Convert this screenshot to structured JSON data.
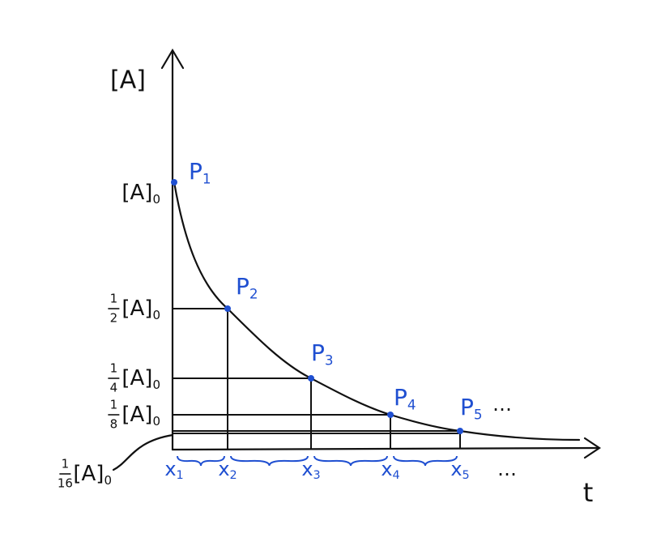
{
  "axes": {
    "y_label": "[A]",
    "x_label": "t"
  },
  "y_labels": [
    {
      "base": "[A]",
      "subscript": "0"
    },
    {
      "numerator": "1",
      "denominator": "2",
      "base": "[A]",
      "subscript": "0"
    },
    {
      "numerator": "1",
      "denominator": "4",
      "base": "[A]",
      "subscript": "0"
    },
    {
      "numerator": "1",
      "denominator": "8",
      "base": "[A]",
      "subscript": "0"
    },
    {
      "numerator": "1",
      "denominator": "16",
      "base": "[A]",
      "subscript": "0"
    }
  ],
  "points": [
    {
      "base": "P",
      "subscript": "1"
    },
    {
      "base": "P",
      "subscript": "2"
    },
    {
      "base": "P",
      "subscript": "3"
    },
    {
      "base": "P",
      "subscript": "4"
    },
    {
      "base": "P",
      "subscript": "5"
    }
  ],
  "x_labels": [
    {
      "base": "x",
      "subscript": "1"
    },
    {
      "base": "x",
      "subscript": "2"
    },
    {
      "base": "x",
      "subscript": "3"
    },
    {
      "base": "x",
      "subscript": "4"
    },
    {
      "base": "x",
      "subscript": "5"
    }
  ],
  "ellipses": [
    "…",
    "…"
  ]
}
